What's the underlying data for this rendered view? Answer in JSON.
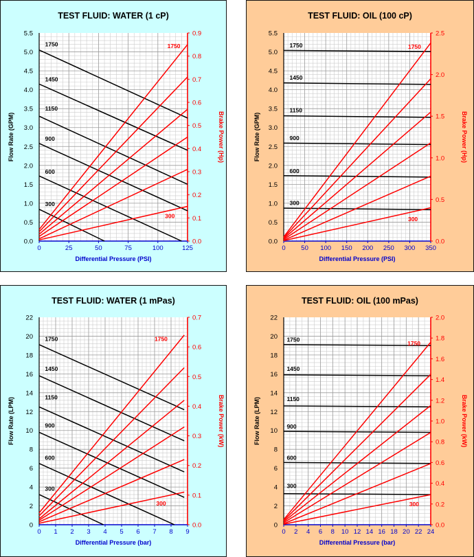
{
  "colors": {
    "water_bg": "#ccffff",
    "oil_bg": "#ffcc99",
    "flow_line": "#000000",
    "power_line": "#ff0000",
    "x_axis": "#0000cc",
    "grid_major": "#9a9a9a",
    "grid_minor": "#cccccc"
  },
  "chart_data": [
    {
      "type": "line",
      "title": "TEST FLUID:  WATER (1 cP)",
      "xlabel": "Differential Pressure (PSI)",
      "ylabel": "Flow Rate (GPM)",
      "y2label": "Brake Power (Hp)",
      "xlim": [
        0,
        125
      ],
      "ylim": [
        0,
        5.5
      ],
      "y2lim": [
        0,
        0.9
      ],
      "xticks": [
        "0",
        "25",
        "50",
        "75",
        "100",
        "125"
      ],
      "yticks": [
        "0.0",
        "0.5",
        "1.0",
        "1.5",
        "2.0",
        "2.5",
        "3.0",
        "3.5",
        "4.0",
        "4.5",
        "5.0",
        "5.5"
      ],
      "y2ticks": [
        "0.0",
        "0.1",
        "0.2",
        "0.3",
        "0.4",
        "0.5",
        "0.6",
        "0.7",
        "0.8",
        "0.9"
      ],
      "grid": true,
      "speeds": [
        "1750",
        "1450",
        "1150",
        "900",
        "600",
        "300"
      ],
      "flow_series": [
        {
          "name": "1750",
          "x": [
            0,
            125
          ],
          "y": [
            5.05,
            3.25
          ]
        },
        {
          "name": "1450",
          "x": [
            0,
            125
          ],
          "y": [
            4.15,
            2.4
          ]
        },
        {
          "name": "1150",
          "x": [
            0,
            125
          ],
          "y": [
            3.3,
            1.5
          ]
        },
        {
          "name": "900",
          "x": [
            0,
            125
          ],
          "y": [
            2.58,
            0.8
          ]
        },
        {
          "name": "600",
          "x": [
            0,
            120
          ],
          "y": [
            1.72,
            0.0
          ]
        },
        {
          "name": "300",
          "x": [
            0,
            55
          ],
          "y": [
            0.84,
            0.0
          ]
        }
      ],
      "power_series": [
        {
          "name": "1750",
          "x": [
            0,
            125
          ],
          "y": [
            0.05,
            0.85
          ]
        },
        {
          "name": "1450",
          "x": [
            0,
            125
          ],
          "y": [
            0.04,
            0.71
          ]
        },
        {
          "name": "1150",
          "x": [
            0,
            125
          ],
          "y": [
            0.03,
            0.57
          ]
        },
        {
          "name": "900",
          "x": [
            0,
            125
          ],
          "y": [
            0.02,
            0.45
          ]
        },
        {
          "name": "600",
          "x": [
            0,
            125
          ],
          "y": [
            0.01,
            0.31
          ]
        },
        {
          "name": "300",
          "x": [
            0,
            125
          ],
          "y": [
            0.005,
            0.15
          ]
        }
      ],
      "flow_labels": [
        {
          "text": "1750",
          "x": 5,
          "y": 5.15
        },
        {
          "text": "1450",
          "x": 5,
          "y": 4.22
        },
        {
          "text": "1150",
          "x": 5,
          "y": 3.45
        },
        {
          "text": "900",
          "x": 5,
          "y": 2.65
        },
        {
          "text": "600",
          "x": 5,
          "y": 1.78
        },
        {
          "text": "300",
          "x": 5,
          "y": 0.93
        }
      ],
      "power_labels": [
        {
          "text": "1750",
          "x": 108,
          "y": 0.835
        },
        {
          "text": "300",
          "x": 106,
          "y": 0.1
        }
      ]
    },
    {
      "type": "line",
      "title": "TEST FLUID:  OIL (100 cP)",
      "xlabel": "Differential Pressure (PSI)",
      "ylabel": "Flow Rate (GPM)",
      "y2label": "Brake Power (Hp)",
      "xlim": [
        0,
        350
      ],
      "ylim": [
        0,
        5.5
      ],
      "y2lim": [
        0,
        2.5
      ],
      "xticks": [
        "0",
        "50",
        "100",
        "150",
        "200",
        "250",
        "300",
        "350"
      ],
      "yticks": [
        "0.0",
        "0.5",
        "1.0",
        "1.5",
        "2.0",
        "2.5",
        "3.0",
        "3.5",
        "4.0",
        "4.5",
        "5.0",
        "5.5"
      ],
      "y2ticks": [
        "0.0",
        "0.5",
        "1.0",
        "1.5",
        "2.0",
        "2.5"
      ],
      "grid": true,
      "speeds": [
        "1750",
        "1450",
        "1150",
        "900",
        "600",
        "300"
      ],
      "flow_series": [
        {
          "name": "1750",
          "x": [
            0,
            350
          ],
          "y": [
            5.04,
            5.01
          ]
        },
        {
          "name": "1450",
          "x": [
            0,
            350
          ],
          "y": [
            4.18,
            4.14
          ]
        },
        {
          "name": "1150",
          "x": [
            0,
            350
          ],
          "y": [
            3.31,
            3.27
          ]
        },
        {
          "name": "900",
          "x": [
            0,
            350
          ],
          "y": [
            2.59,
            2.55
          ]
        },
        {
          "name": "600",
          "x": [
            0,
            350
          ],
          "y": [
            1.73,
            1.69
          ]
        },
        {
          "name": "300",
          "x": [
            0,
            350
          ],
          "y": [
            0.87,
            0.83
          ]
        }
      ],
      "power_series": [
        {
          "name": "1750",
          "x": [
            0,
            350
          ],
          "y": [
            0.05,
            2.38
          ]
        },
        {
          "name": "1450",
          "x": [
            0,
            350
          ],
          "y": [
            0.04,
            1.95
          ]
        },
        {
          "name": "1150",
          "x": [
            0,
            350
          ],
          "y": [
            0.03,
            1.55
          ]
        },
        {
          "name": "900",
          "x": [
            0,
            350
          ],
          "y": [
            0.02,
            1.18
          ]
        },
        {
          "name": "600",
          "x": [
            0,
            350
          ],
          "y": [
            0.01,
            0.78
          ]
        },
        {
          "name": "300",
          "x": [
            0,
            350
          ],
          "y": [
            0.005,
            0.4
          ]
        }
      ],
      "flow_labels": [
        {
          "text": "1750",
          "x": 14,
          "y": 5.12
        },
        {
          "text": "1450",
          "x": 14,
          "y": 4.27
        },
        {
          "text": "1150",
          "x": 14,
          "y": 3.4
        },
        {
          "text": "900",
          "x": 14,
          "y": 2.67
        },
        {
          "text": "600",
          "x": 14,
          "y": 1.8
        },
        {
          "text": "300",
          "x": 14,
          "y": 0.95
        }
      ],
      "power_labels": [
        {
          "text": "1750",
          "x": 296,
          "y": 2.31
        },
        {
          "text": "300",
          "x": 296,
          "y": 0.24
        }
      ]
    },
    {
      "type": "line",
      "title": "TEST FLUID:  WATER (1 mPas)",
      "xlabel": "Differential Pressure (bar)",
      "ylabel": "Flow Rate (LPM)",
      "y2label": "Brake Power (kW)",
      "xlim": [
        0,
        9
      ],
      "ylim": [
        0,
        22
      ],
      "y2lim": [
        0,
        0.7
      ],
      "xticks": [
        "0",
        "1",
        "2",
        "3",
        "4",
        "5",
        "6",
        "7",
        "8",
        "9"
      ],
      "yticks": [
        "0",
        "2",
        "4",
        "6",
        "8",
        "10",
        "12",
        "14",
        "16",
        "18",
        "20",
        "22"
      ],
      "y2ticks": [
        "0.0",
        "0.1",
        "0.2",
        "0.3",
        "0.4",
        "0.5",
        "0.6",
        "0.7"
      ],
      "grid": true,
      "speeds": [
        "1750",
        "1450",
        "1150",
        "900",
        "600",
        "300"
      ],
      "flow_series": [
        {
          "name": "1750",
          "x": [
            0,
            8.8
          ],
          "y": [
            19.1,
            12.2
          ]
        },
        {
          "name": "1450",
          "x": [
            0,
            8.8
          ],
          "y": [
            15.8,
            8.9
          ]
        },
        {
          "name": "1150",
          "x": [
            0,
            8.8
          ],
          "y": [
            12.5,
            5.6
          ]
        },
        {
          "name": "900",
          "x": [
            0,
            8.8
          ],
          "y": [
            9.8,
            2.9
          ]
        },
        {
          "name": "600",
          "x": [
            0,
            8.2
          ],
          "y": [
            6.5,
            0.0
          ]
        },
        {
          "name": "300",
          "x": [
            0,
            3.9
          ],
          "y": [
            3.2,
            0.0
          ]
        }
      ],
      "power_series": [
        {
          "name": "1750",
          "x": [
            0,
            8.8
          ],
          "y": [
            0.04,
            0.64
          ]
        },
        {
          "name": "1450",
          "x": [
            0,
            8.8
          ],
          "y": [
            0.03,
            0.53
          ]
        },
        {
          "name": "1150",
          "x": [
            0,
            8.8
          ],
          "y": [
            0.02,
            0.42
          ]
        },
        {
          "name": "900",
          "x": [
            0,
            8.8
          ],
          "y": [
            0.015,
            0.33
          ]
        },
        {
          "name": "600",
          "x": [
            0,
            8.8
          ],
          "y": [
            0.01,
            0.22
          ]
        },
        {
          "name": "300",
          "x": [
            0,
            8.8
          ],
          "y": [
            0.005,
            0.11
          ]
        }
      ],
      "flow_labels": [
        {
          "text": "1750",
          "x": 0.35,
          "y": 19.5
        },
        {
          "text": "1450",
          "x": 0.35,
          "y": 16.3
        },
        {
          "text": "1150",
          "x": 0.35,
          "y": 13.3
        },
        {
          "text": "900",
          "x": 0.35,
          "y": 10.3
        },
        {
          "text": "600",
          "x": 0.35,
          "y": 6.9
        },
        {
          "text": "300",
          "x": 0.35,
          "y": 3.6
        }
      ],
      "power_labels": [
        {
          "text": "1750",
          "x": 7.0,
          "y": 0.62
        },
        {
          "text": "300",
          "x": 7.1,
          "y": 0.065
        }
      ]
    },
    {
      "type": "line",
      "title": "TEST FLUID:  OIL (100 mPas)",
      "xlabel": "Differential Pressure (bar)",
      "ylabel": "Flow Rate (LPM)",
      "y2label": "Brake Power (kW)",
      "xlim": [
        0,
        24
      ],
      "ylim": [
        0,
        22
      ],
      "y2lim": [
        0,
        2.0
      ],
      "xticks": [
        "0",
        "2",
        "4",
        "6",
        "8",
        "10",
        "12",
        "14",
        "16",
        "18",
        "20",
        "22",
        "24"
      ],
      "yticks": [
        "0",
        "2",
        "4",
        "6",
        "8",
        "10",
        "12",
        "14",
        "16",
        "18",
        "20",
        "22"
      ],
      "y2ticks": [
        "0.0",
        "0.2",
        "0.4",
        "0.6",
        "0.8",
        "1.0",
        "1.2",
        "1.4",
        "1.6",
        "1.8",
        "2.0"
      ],
      "grid": true,
      "speeds": [
        "1750",
        "1450",
        "1150",
        "900",
        "600",
        "300"
      ],
      "flow_series": [
        {
          "name": "1750",
          "x": [
            0,
            24
          ],
          "y": [
            19.1,
            19.0
          ]
        },
        {
          "name": "1450",
          "x": [
            0,
            24
          ],
          "y": [
            15.9,
            15.8
          ]
        },
        {
          "name": "1150",
          "x": [
            0,
            24
          ],
          "y": [
            12.6,
            12.5
          ]
        },
        {
          "name": "900",
          "x": [
            0,
            24
          ],
          "y": [
            9.9,
            9.8
          ]
        },
        {
          "name": "600",
          "x": [
            0,
            24
          ],
          "y": [
            6.6,
            6.5
          ]
        },
        {
          "name": "300",
          "x": [
            0,
            24
          ],
          "y": [
            3.3,
            3.2
          ]
        }
      ],
      "power_series": [
        {
          "name": "1750",
          "x": [
            0,
            24
          ],
          "y": [
            0.05,
            1.76
          ]
        },
        {
          "name": "1450",
          "x": [
            0,
            24
          ],
          "y": [
            0.04,
            1.45
          ]
        },
        {
          "name": "1150",
          "x": [
            0,
            24
          ],
          "y": [
            0.03,
            1.15
          ]
        },
        {
          "name": "900",
          "x": [
            0,
            24
          ],
          "y": [
            0.02,
            0.89
          ]
        },
        {
          "name": "600",
          "x": [
            0,
            24
          ],
          "y": [
            0.01,
            0.59
          ]
        },
        {
          "name": "300",
          "x": [
            0,
            24
          ],
          "y": [
            0.005,
            0.29
          ]
        }
      ],
      "flow_labels": [
        {
          "text": "1750",
          "x": 0.5,
          "y": 19.4
        },
        {
          "text": "1450",
          "x": 0.5,
          "y": 16.3
        },
        {
          "text": "1150",
          "x": 0.5,
          "y": 13.1
        },
        {
          "text": "900",
          "x": 0.5,
          "y": 10.2
        },
        {
          "text": "600",
          "x": 0.5,
          "y": 6.9
        },
        {
          "text": "300",
          "x": 0.5,
          "y": 3.9
        }
      ],
      "power_labels": [
        {
          "text": "1750",
          "x": 20.2,
          "y": 1.73
        },
        {
          "text": "300",
          "x": 20.5,
          "y": 0.18
        }
      ]
    }
  ]
}
